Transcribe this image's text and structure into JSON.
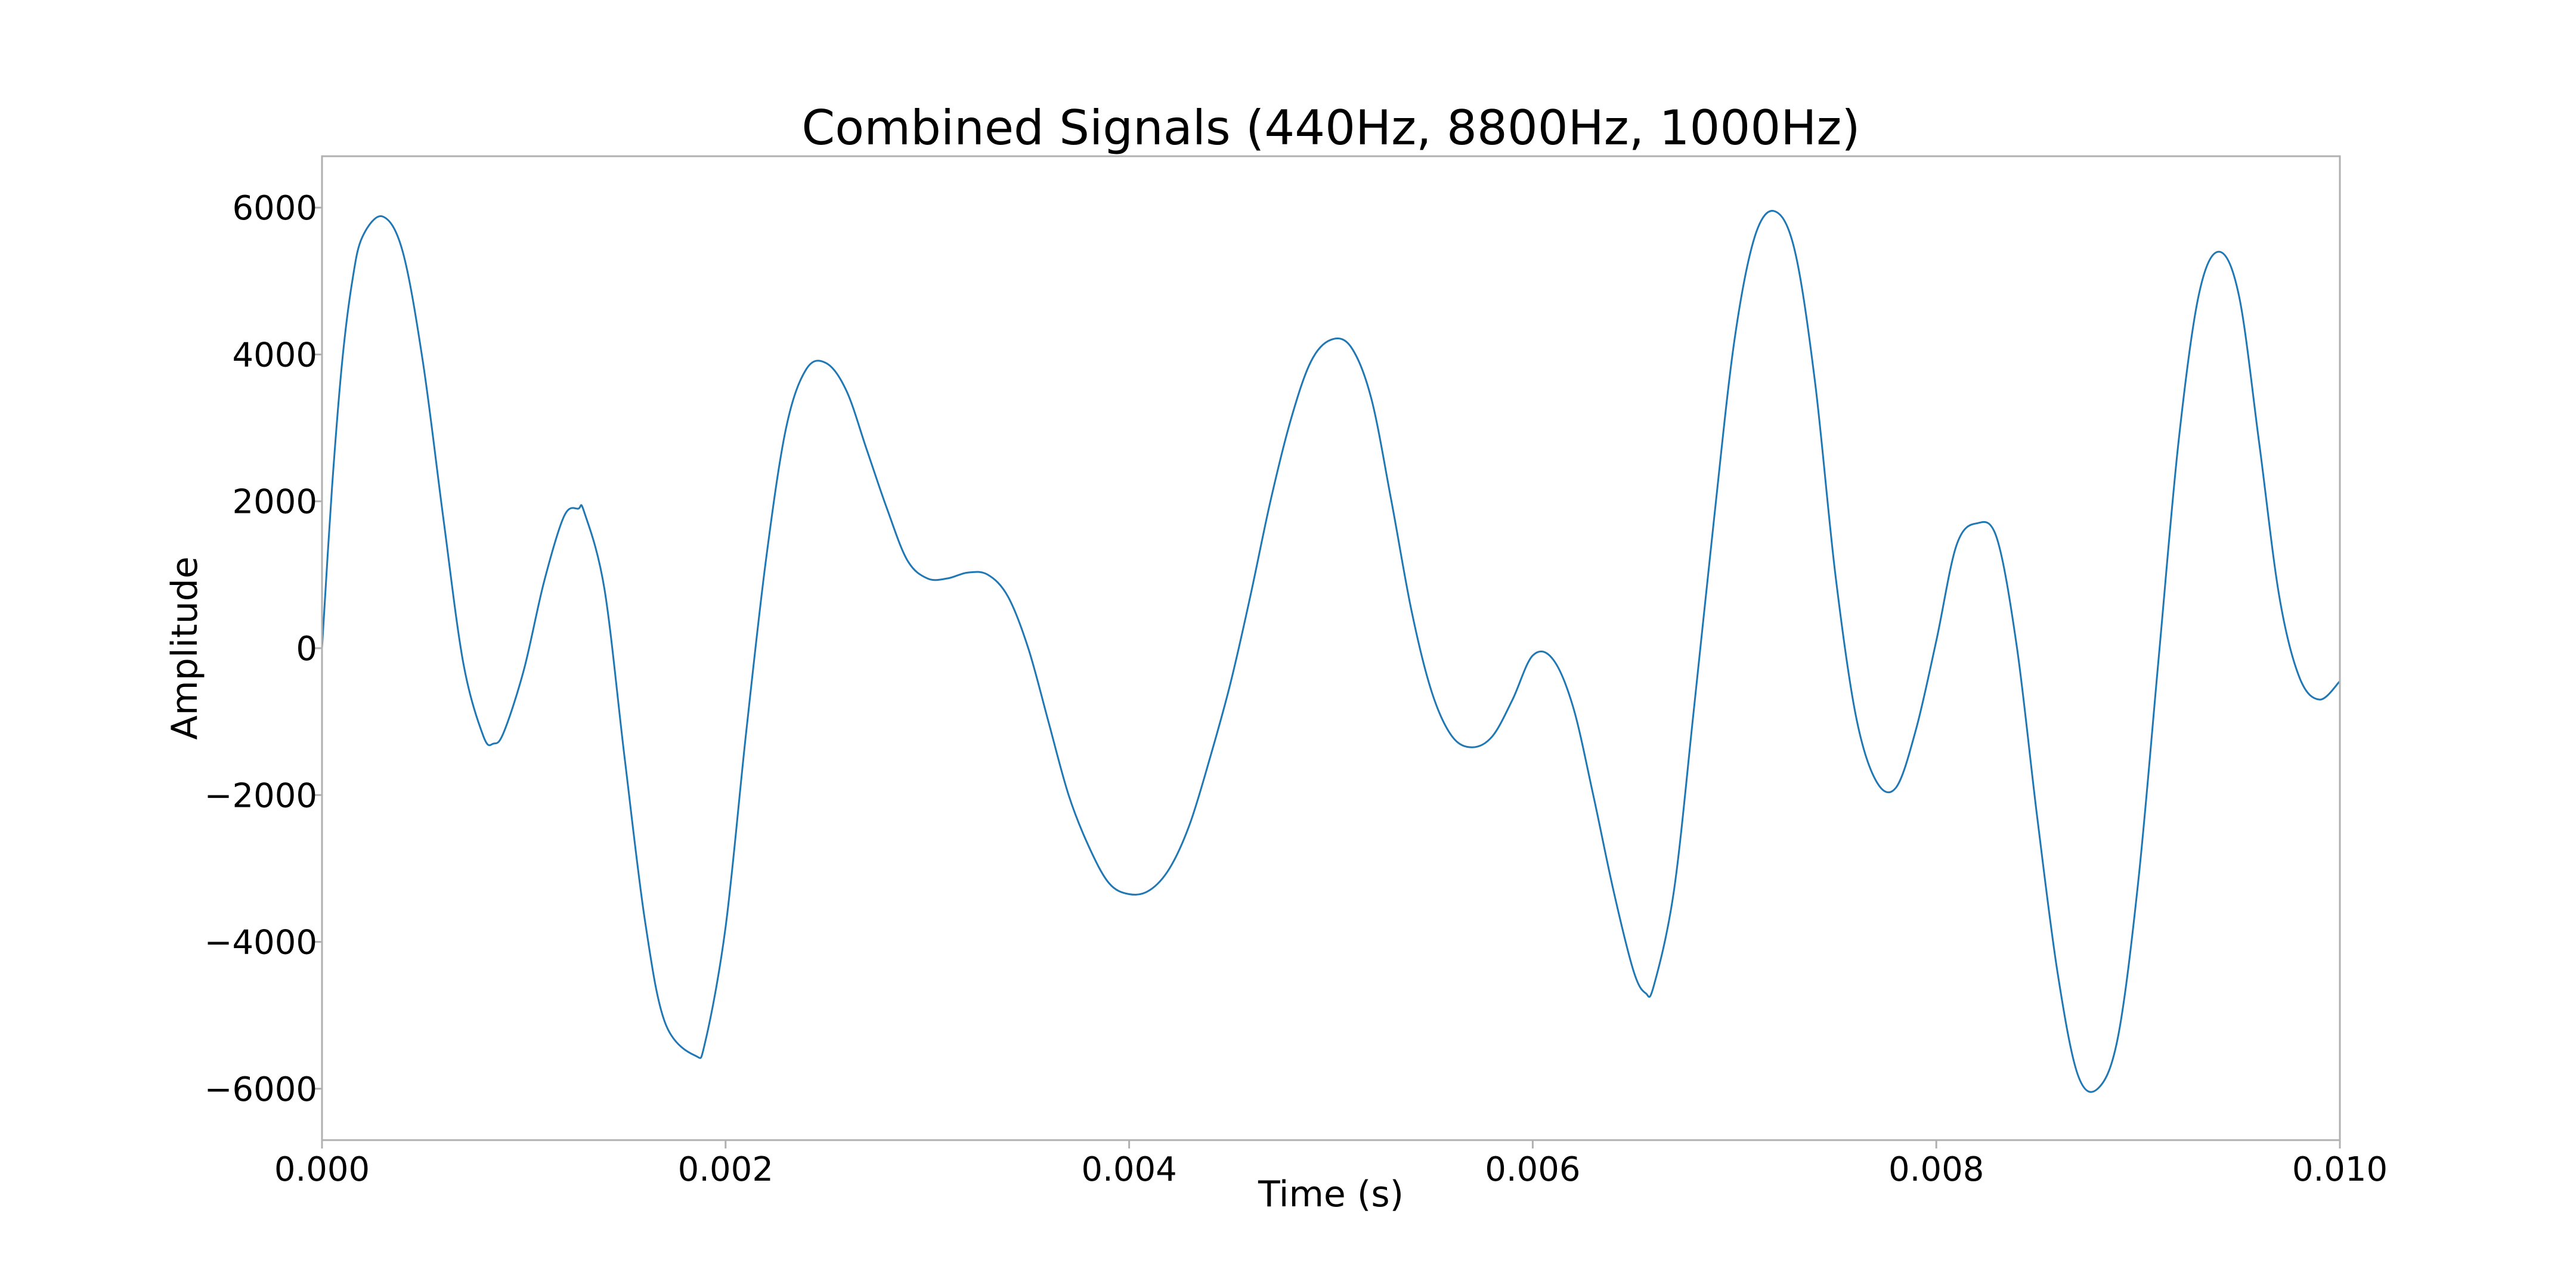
{
  "chart_data": {
    "type": "line",
    "title": "Combined Signals (440Hz, 8800Hz, 1000Hz)",
    "xlabel": "Time (s)",
    "ylabel": "Amplitude",
    "xlim": [
      0,
      0.01
    ],
    "ylim": [
      -6700,
      6700
    ],
    "grid": false,
    "legend": "none",
    "x_ticks": [
      0,
      0.002,
      0.004,
      0.006,
      0.008,
      0.01
    ],
    "x_tick_labels": [
      "0.000",
      "0.002",
      "0.004",
      "0.006",
      "0.008",
      "0.010"
    ],
    "y_ticks": [
      6000,
      4000,
      2000,
      0,
      -2000,
      -4000,
      -6000
    ],
    "y_tick_labels": [
      "6000",
      "4000",
      "2000",
      "0",
      "−2000",
      "−4000",
      "−6000"
    ],
    "line_color": "#1f77b4",
    "series": [
      {
        "x": [
          0,
          5e-05,
          0.0001,
          0.00015,
          0.0002,
          0.0003,
          0.0004,
          0.0005,
          0.0006,
          0.0007,
          0.0008,
          0.00085,
          0.0009,
          0.001,
          0.0011,
          0.0012,
          0.00127,
          0.0013,
          0.0014,
          0.0015,
          0.0016,
          0.0017,
          0.00185,
          0.0019,
          0.002,
          0.0021,
          0.0022,
          0.0023,
          0.0024,
          0.0025,
          0.0026,
          0.0027,
          0.0028,
          0.0029,
          0.003,
          0.0031,
          0.0032,
          0.0033,
          0.0034,
          0.0035,
          0.0036,
          0.0037,
          0.0038,
          0.0039,
          0.004,
          0.0041,
          0.0042,
          0.0043,
          0.0044,
          0.0045,
          0.0046,
          0.0047,
          0.0048,
          0.0049,
          0.005,
          0.0051,
          0.0052,
          0.0053,
          0.0054,
          0.0055,
          0.0056,
          0.0057,
          0.0058,
          0.0059,
          0.006,
          0.0061,
          0.0062,
          0.0063,
          0.0064,
          0.0065,
          0.00656,
          0.0066,
          0.0067,
          0.0068,
          0.0069,
          0.007,
          0.0071,
          0.0072,
          0.0073,
          0.0074,
          0.0075,
          0.0076,
          0.0077,
          0.0078,
          0.0079,
          0.008,
          0.0081,
          0.0082,
          0.0083,
          0.0084,
          0.0085,
          0.0086,
          0.0087,
          0.0088,
          0.0089,
          0.009,
          0.0091,
          0.0092,
          0.0093,
          0.0094,
          0.0095,
          0.0096,
          0.0097,
          0.0098,
          0.0099,
          0.01
        ],
        "y": [
          0,
          2200,
          3900,
          5000,
          5600,
          5880,
          5400,
          3900,
          1800,
          -200,
          -1200,
          -1300,
          -1150,
          -300,
          900,
          1800,
          1900,
          1850,
          800,
          -1500,
          -3700,
          -5100,
          -5550,
          -5350,
          -3800,
          -1200,
          1200,
          3000,
          3800,
          3880,
          3500,
          2700,
          1900,
          1200,
          950,
          950,
          1030,
          1000,
          700,
          0,
          -1000,
          -2000,
          -2700,
          -3200,
          -3350,
          -3300,
          -3000,
          -2400,
          -1500,
          -500,
          700,
          2000,
          3100,
          3900,
          4200,
          4100,
          3400,
          2000,
          500,
          -600,
          -1200,
          -1350,
          -1200,
          -700,
          -100,
          -150,
          -800,
          -2000,
          -3300,
          -4400,
          -4700,
          -4600,
          -3300,
          -800,
          1800,
          4200,
          5600,
          5950,
          5400,
          3600,
          1000,
          -900,
          -1800,
          -1900,
          -1100,
          100,
          1400,
          1700,
          1500,
          0,
          -2300,
          -4400,
          -5800,
          -6000,
          -5300,
          -3200,
          -200,
          2800,
          4800,
          5400,
          4800,
          2800,
          700,
          -400,
          -700,
          -450
        ]
      }
    ]
  }
}
